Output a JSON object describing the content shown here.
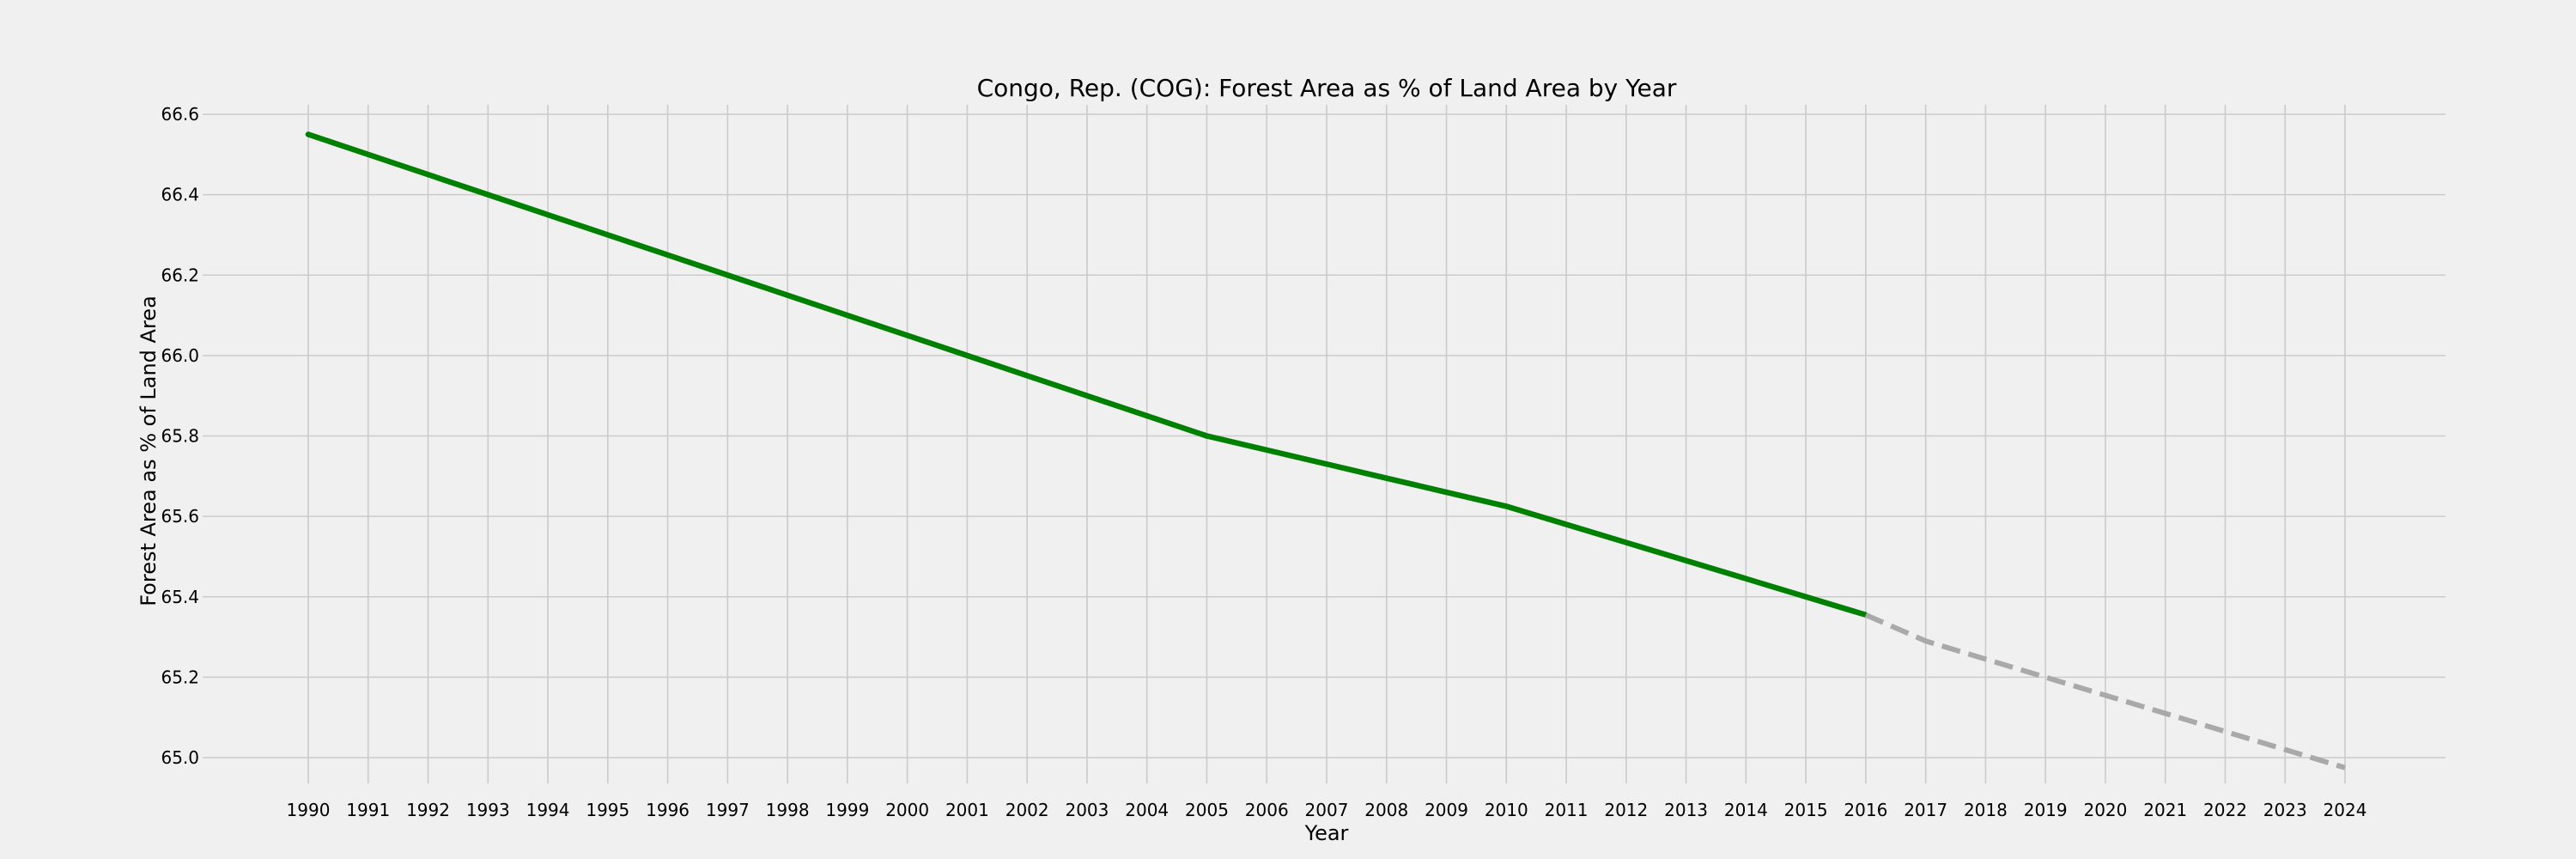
{
  "chart_data": {
    "type": "line",
    "title": "Congo, Rep. (COG): Forest Area as % of Land Area by Year",
    "xlabel": "Year",
    "ylabel": "Forest Area as % of Land Area",
    "xlim": [
      1990,
      2024
    ],
    "ylim": [
      64.95,
      66.6
    ],
    "yticks": [
      65.0,
      65.2,
      65.4,
      65.6,
      65.8,
      66.0,
      66.2,
      66.4,
      66.6
    ],
    "xticks": [
      1990,
      1991,
      1992,
      1993,
      1994,
      1995,
      1996,
      1997,
      1998,
      1999,
      2000,
      2001,
      2002,
      2003,
      2004,
      2005,
      2006,
      2007,
      2008,
      2009,
      2010,
      2011,
      2012,
      2013,
      2014,
      2015,
      2016,
      2017,
      2018,
      2019,
      2020,
      2021,
      2022,
      2023,
      2024
    ],
    "grid": true,
    "series": [
      {
        "style": "solid",
        "color": "#008000",
        "x": [
          1990,
          1991,
          1992,
          1993,
          1994,
          1995,
          1996,
          1997,
          1998,
          1999,
          2000,
          2001,
          2002,
          2003,
          2004,
          2005,
          2006,
          2007,
          2008,
          2009,
          2010,
          2011,
          2012,
          2013,
          2014,
          2015,
          2016
        ],
        "y": [
          66.55,
          66.5,
          66.45,
          66.4,
          66.35,
          66.3,
          66.25,
          66.2,
          66.15,
          66.1,
          66.05,
          66.0,
          65.95,
          65.9,
          65.85,
          65.8,
          65.765,
          65.73,
          65.695,
          65.66,
          65.625,
          65.58,
          65.535,
          65.49,
          65.445,
          65.4,
          65.355
        ]
      },
      {
        "style": "dashed",
        "color": "#a9a9a9",
        "x": [
          2016,
          2017,
          2018,
          2019,
          2020,
          2021,
          2022,
          2023,
          2024
        ],
        "y": [
          65.355,
          65.29,
          65.245,
          65.2,
          65.155,
          65.11,
          65.065,
          65.02,
          64.975
        ]
      }
    ]
  }
}
